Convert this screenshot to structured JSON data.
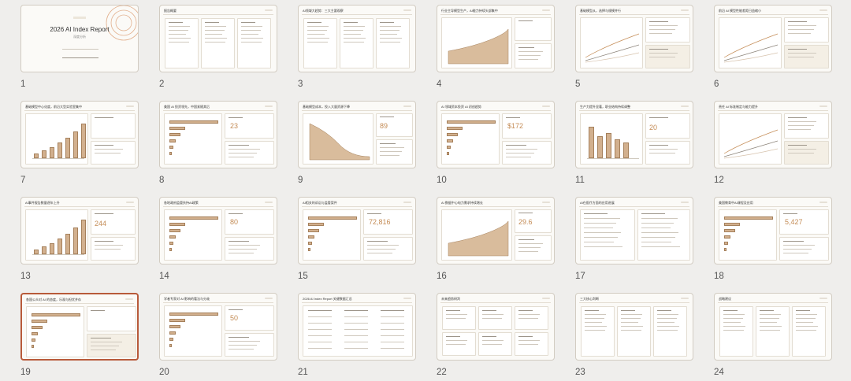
{
  "app": {
    "view": "slide-sorter"
  },
  "deck": {
    "cover_title": "2026 AI Index Report",
    "cover_subtitle": "深度分析"
  },
  "slides": [
    {
      "number": "1",
      "title": "",
      "layout": "cover",
      "selected": false
    },
    {
      "number": "2",
      "title": "报告概要",
      "layout": "three-col",
      "selected": false
    },
    {
      "number": "3",
      "title": "AI领域大趋势：三大主要观察",
      "layout": "three-col",
      "selected": false
    },
    {
      "number": "4",
      "title": "行业主导模型生产，AI能力持续头部集中",
      "layout": "area",
      "selected": false
    },
    {
      "number": "5",
      "title": "基础模型从，选择与规模并行",
      "layout": "lines",
      "selected": false
    },
    {
      "number": "6",
      "title": "前沿 AI 模型性能差距日益缩小",
      "layout": "lines",
      "selected": false
    },
    {
      "number": "7",
      "title": "基础模型中心化度，前沿大型实验室集中",
      "layout": "vbars-left",
      "selected": false
    },
    {
      "number": "8",
      "title": "美国 AI 投资领先，中国紧随其后",
      "layout": "hbars",
      "selected": false
    },
    {
      "number": "9",
      "title": "基础模型成本，投入大量资源下降",
      "layout": "area-down",
      "selected": false
    },
    {
      "number": "10",
      "title": "AI 领域资本投资 AI 初创趋势",
      "layout": "hbars",
      "selected": false
    },
    {
      "number": "11",
      "title": "生产力提升显著，职业结构持续调整",
      "layout": "vbars",
      "selected": false
    },
    {
      "number": "12",
      "title": "责任 AI 标准制定与能力提升",
      "layout": "lines",
      "selected": false
    },
    {
      "number": "13",
      "title": "AI事件报告数量逐年上升",
      "layout": "vbars-left",
      "selected": false
    },
    {
      "number": "14",
      "title": "各地政府监管扶持AI政策",
      "layout": "hbars",
      "selected": false
    },
    {
      "number": "15",
      "title": "AI相关的诉讼与监管案件",
      "layout": "hbars",
      "selected": false
    },
    {
      "number": "16",
      "title": "AI 数据中心电力需求持续增长",
      "layout": "area",
      "selected": false
    },
    {
      "number": "17",
      "title": "AI在医疗方面的应用进展",
      "layout": "list",
      "selected": false
    },
    {
      "number": "18",
      "title": "美国教育中AI课程及应用",
      "layout": "hbars",
      "selected": false
    },
    {
      "number": "19",
      "title": "各国公众对 AI 的态度，乐观与担忧并存",
      "layout": "hbars",
      "selected": true
    },
    {
      "number": "20",
      "title": "学者专家对 AI 影响的看法与分歧",
      "layout": "hbars",
      "selected": false
    },
    {
      "number": "21",
      "title": "2026 AI Index Report 关键数据汇总",
      "layout": "table",
      "selected": false
    },
    {
      "number": "22",
      "title": "未来趋势研判",
      "layout": "grid",
      "selected": false
    },
    {
      "number": "23",
      "title": "三大核心判断",
      "layout": "three-col",
      "selected": false
    },
    {
      "number": "24",
      "title": "战略建议",
      "layout": "three-col",
      "selected": false
    }
  ],
  "big_numbers": {
    "s8": "23",
    "s9": "89",
    "s10": "$172",
    "s11": "20",
    "s13": "244",
    "s14": "80",
    "s15": "72,816",
    "s16": "29.6",
    "s18": "5,427",
    "s20": "50"
  }
}
